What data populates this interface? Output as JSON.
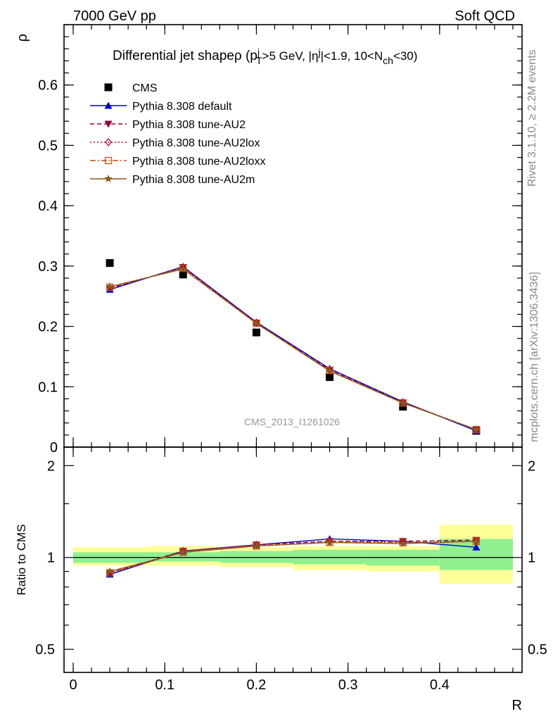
{
  "header": {
    "left": "7000 GeV pp",
    "right": "Soft QCD"
  },
  "side_labels": {
    "rivet": "Rivet 3.1.10, ≥ 2.2M events",
    "mcplots": "mcplots.cern.ch [arXiv:1306.3436]"
  },
  "watermark": "CMS_2013_I1261026",
  "colors": {
    "cms": "#000000",
    "default": "#0000cc",
    "au2": "#8b0036",
    "au2lox": "#b0003a",
    "au2loxx": "#c84b10",
    "au2m": "#8b5a1a",
    "band_inner": "#90f090",
    "band_outer": "#ffff99"
  },
  "chart_data": [
    {
      "type": "line",
      "title": "Differential jet shapeρ (p",
      "title_parts": {
        "pre": "Differential jet shapeρ (p",
        "sup_sub_1_sup": "j",
        "sup_sub_1_sub": "T",
        "mid1": ">5 GeV, |η",
        "sup2": "j",
        "mid2": "|<1.9, 10<N",
        "sub3": "ch",
        "post": "<30)"
      },
      "ylabel": "ρ",
      "xlabel": "",
      "xlim": [
        -0.01,
        0.49
      ],
      "ylim": [
        0,
        0.7
      ],
      "yticks": [
        0,
        0.1,
        0.2,
        0.3,
        0.4,
        0.5,
        0.6
      ],
      "ytick_labels": [
        "0",
        "0.1",
        "0.2",
        "0.3",
        "0.4",
        "0.5",
        "0.6"
      ],
      "legend_position": "top-left",
      "x": [
        0.04,
        0.12,
        0.2,
        0.28,
        0.36,
        0.44
      ],
      "series": [
        {
          "name": "CMS",
          "key": "cms",
          "marker": "square-filled",
          "line": "none",
          "values": [
            0.305,
            0.286,
            0.19,
            0.116,
            0.067,
            0.027
          ]
        },
        {
          "name": "Pythia 8.308 default",
          "key": "default",
          "marker": "triangle-up-filled",
          "line": "solid",
          "values": [
            0.261,
            0.299,
            0.207,
            0.13,
            0.075,
            0.027
          ]
        },
        {
          "name": "Pythia 8.308 tune-AU2",
          "key": "au2",
          "marker": "triangle-down-filled",
          "line": "dashed",
          "values": [
            0.263,
            0.298,
            0.206,
            0.128,
            0.074,
            0.029
          ]
        },
        {
          "name": "Pythia 8.308 tune-AU2lox",
          "key": "au2lox",
          "marker": "diamond-open",
          "line": "dotted",
          "values": [
            0.264,
            0.297,
            0.206,
            0.127,
            0.074,
            0.029
          ]
        },
        {
          "name": "Pythia 8.308 tune-AU2loxx",
          "key": "au2loxx",
          "marker": "square-open",
          "line": "dashdot",
          "values": [
            0.265,
            0.296,
            0.205,
            0.127,
            0.073,
            0.029
          ]
        },
        {
          "name": "Pythia 8.308 tune-AU2m",
          "key": "au2m",
          "marker": "star",
          "line": "solid",
          "values": [
            0.266,
            0.295,
            0.205,
            0.126,
            0.073,
            0.029
          ]
        }
      ]
    },
    {
      "type": "line",
      "title": "",
      "ylabel": "Ratio to CMS",
      "xlabel": "R",
      "xlim": [
        -0.01,
        0.49
      ],
      "ylim": [
        0.42,
        2.3
      ],
      "log_y": true,
      "yticks": [
        0.5,
        1,
        2
      ],
      "ytick_labels": [
        "0.5",
        "1",
        "2"
      ],
      "xticks": [
        0,
        0.1,
        0.2,
        0.3,
        0.4
      ],
      "xtick_labels": [
        "0",
        "0.1",
        "0.2",
        "0.3",
        "0.4"
      ],
      "bins": [
        {
          "lo": 0.0,
          "hi": 0.08,
          "inner": [
            0.96,
            1.04
          ],
          "outer": [
            0.94,
            1.08
          ]
        },
        {
          "lo": 0.08,
          "hi": 0.16,
          "inner": [
            0.97,
            1.04
          ],
          "outer": [
            0.94,
            1.09
          ]
        },
        {
          "lo": 0.16,
          "hi": 0.24,
          "inner": [
            0.96,
            1.05
          ],
          "outer": [
            0.93,
            1.08
          ]
        },
        {
          "lo": 0.24,
          "hi": 0.32,
          "inner": [
            0.95,
            1.06
          ],
          "outer": [
            0.91,
            1.09
          ]
        },
        {
          "lo": 0.32,
          "hi": 0.4,
          "inner": [
            0.94,
            1.06
          ],
          "outer": [
            0.9,
            1.09
          ]
        },
        {
          "lo": 0.4,
          "hi": 0.48,
          "inner": [
            0.91,
            1.15
          ],
          "outer": [
            0.82,
            1.28
          ]
        }
      ],
      "x": [
        0.04,
        0.12,
        0.2,
        0.28,
        0.36,
        0.44
      ],
      "series": [
        {
          "name": "Pythia 8.308 default",
          "key": "default",
          "marker": "triangle-up-filled",
          "line": "solid",
          "values": [
            0.88,
            1.05,
            1.1,
            1.15,
            1.13,
            1.08
          ]
        },
        {
          "name": "Pythia 8.308 tune-AU2",
          "key": "au2",
          "marker": "triangle-down-filled",
          "line": "dashed",
          "values": [
            0.89,
            1.05,
            1.1,
            1.13,
            1.13,
            1.14
          ]
        },
        {
          "name": "Pythia 8.308 tune-AU2lox",
          "key": "au2lox",
          "marker": "diamond-open",
          "line": "dotted",
          "values": [
            0.89,
            1.05,
            1.1,
            1.13,
            1.12,
            1.13
          ]
        },
        {
          "name": "Pythia 8.308 tune-AU2loxx",
          "key": "au2loxx",
          "marker": "square-open",
          "line": "dashdot",
          "values": [
            0.89,
            1.04,
            1.09,
            1.12,
            1.12,
            1.13
          ]
        },
        {
          "name": "Pythia 8.308 tune-AU2m",
          "key": "au2m",
          "marker": "star",
          "line": "solid",
          "values": [
            0.9,
            1.04,
            1.09,
            1.12,
            1.11,
            1.13
          ]
        }
      ]
    }
  ]
}
